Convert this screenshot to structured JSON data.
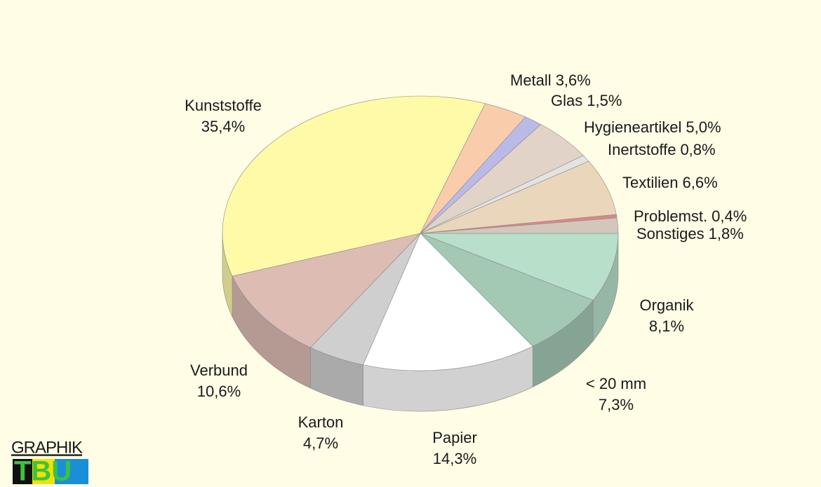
{
  "chart_data": {
    "type": "pie",
    "categories": [
      "Organik",
      "< 20 mm",
      "Papier",
      "Karton",
      "Verbund",
      "Kunststoffe",
      "Metall",
      "Glas",
      "Hygieneartikel",
      "Inertstoffe",
      "Textilien",
      "Problemst.",
      "Sonstiges"
    ],
    "values": [
      8.1,
      7.3,
      14.3,
      4.7,
      10.6,
      35.4,
      3.6,
      1.5,
      5.0,
      0.8,
      6.6,
      0.4,
      1.8
    ],
    "value_labels": [
      "8,1%",
      "7,3%",
      "14,3%",
      "4,7%",
      "10,6%",
      "35,4%",
      "3,6%",
      "1,5%",
      "5,0%",
      "0,8%",
      "6,6%",
      "0,4%",
      "1,8%"
    ],
    "colors": [
      "#b8dfca",
      "#a3c8b4",
      "#ffffff",
      "#cfcfcf",
      "#dcbcb3",
      "#fffaa8",
      "#f9ccab",
      "#babae9",
      "#e2d3c9",
      "#e3e3e3",
      "#ead6bb",
      "#e38484",
      "#d3c7bb"
    ]
  },
  "logo": {
    "top": "GRAPHIK",
    "bottom": "TBU"
  }
}
